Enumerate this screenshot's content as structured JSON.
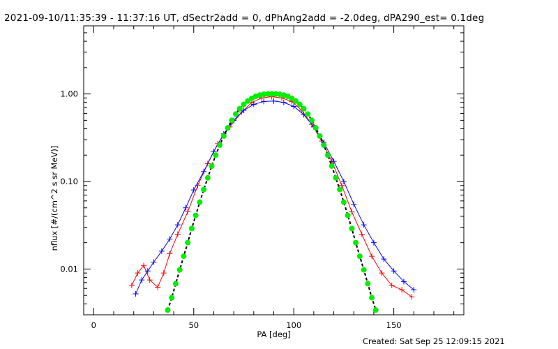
{
  "title": "2021-09-10/11:35:39 - 11:37:16 UT, dSectr2add = 0, dPhAng2add = -2.0deg, dPA290_est=  0.1deg",
  "created": "Created: Sat Sep 25 12:09:15 2021",
  "chart_data": {
    "type": "line",
    "xlabel": "PA [deg]",
    "ylabel": "nflux [#/(cm^2 s sr MeV)]",
    "xlim": [
      -5,
      185
    ],
    "ylim": [
      0.003,
      6.0
    ],
    "yscale": "log",
    "xticks": [
      0,
      50,
      100,
      150
    ],
    "xtick_labels": [
      "0",
      "50",
      "100",
      "150"
    ],
    "yticks": [
      0.01,
      0.1,
      1.0
    ],
    "ytick_labels": [
      "0.01",
      "0.10",
      "1.00"
    ],
    "grid": false,
    "colors": {
      "red": "#ff0000",
      "blue": "#0000ff",
      "green": "#00ee00",
      "black": "#000000"
    },
    "series": [
      {
        "color": "red",
        "marker": "plus",
        "points": [
          [
            19,
            0.0065
          ],
          [
            22,
            0.009
          ],
          [
            25,
            0.011
          ],
          [
            28,
            0.0075
          ],
          [
            32,
            0.0062
          ],
          [
            35,
            0.009
          ],
          [
            38,
            0.015
          ],
          [
            42,
            0.025
          ],
          [
            47,
            0.045
          ],
          [
            52,
            0.09
          ],
          [
            57,
            0.16
          ],
          [
            62,
            0.27
          ],
          [
            68,
            0.42
          ],
          [
            74,
            0.62
          ],
          [
            79,
            0.8
          ],
          [
            84,
            0.9
          ],
          [
            89,
            0.93
          ],
          [
            94,
            0.9
          ],
          [
            99,
            0.82
          ],
          [
            104,
            0.65
          ],
          [
            109,
            0.45
          ],
          [
            114,
            0.29
          ],
          [
            119,
            0.17
          ],
          [
            124,
            0.09
          ],
          [
            129,
            0.045
          ],
          [
            134,
            0.025
          ],
          [
            139,
            0.014
          ],
          [
            144,
            0.009
          ],
          [
            149,
            0.0065
          ],
          [
            154,
            0.0058
          ],
          [
            159,
            0.0048
          ]
        ]
      },
      {
        "color": "blue",
        "marker": "plus",
        "points": [
          [
            21,
            0.0052
          ],
          [
            24,
            0.0075
          ],
          [
            27,
            0.0095
          ],
          [
            30,
            0.012
          ],
          [
            34,
            0.016
          ],
          [
            38,
            0.022
          ],
          [
            42,
            0.032
          ],
          [
            46,
            0.05
          ],
          [
            50,
            0.08
          ],
          [
            55,
            0.13
          ],
          [
            60,
            0.22
          ],
          [
            65,
            0.35
          ],
          [
            70,
            0.5
          ],
          [
            75,
            0.65
          ],
          [
            80,
            0.76
          ],
          [
            85,
            0.82
          ],
          [
            90,
            0.83
          ],
          [
            95,
            0.8
          ],
          [
            100,
            0.72
          ],
          [
            105,
            0.58
          ],
          [
            110,
            0.42
          ],
          [
            115,
            0.28
          ],
          [
            120,
            0.17
          ],
          [
            125,
            0.1
          ],
          [
            130,
            0.055
          ],
          [
            135,
            0.032
          ],
          [
            140,
            0.02
          ],
          [
            145,
            0.013
          ],
          [
            150,
            0.0095
          ],
          [
            155,
            0.0072
          ],
          [
            160,
            0.0058
          ]
        ]
      },
      {
        "color": "green",
        "marker": "circle",
        "points": [
          [
            37,
            0.0034
          ],
          [
            39,
            0.0047
          ],
          [
            41,
            0.0068
          ],
          [
            43,
            0.0098
          ],
          [
            45,
            0.014
          ],
          [
            47,
            0.02
          ],
          [
            49,
            0.029
          ],
          [
            51,
            0.041
          ],
          [
            53,
            0.058
          ],
          [
            55,
            0.081
          ],
          [
            57,
            0.11
          ],
          [
            59,
            0.15
          ],
          [
            61,
            0.2
          ],
          [
            63,
            0.26
          ],
          [
            65,
            0.33
          ],
          [
            67,
            0.41
          ],
          [
            69,
            0.5
          ],
          [
            71,
            0.59
          ],
          [
            73,
            0.68
          ],
          [
            75,
            0.76
          ],
          [
            77,
            0.83
          ],
          [
            79,
            0.89
          ],
          [
            81,
            0.94
          ],
          [
            83,
            0.97
          ],
          [
            85,
            0.99
          ],
          [
            87,
            1.0
          ],
          [
            89,
            1.0
          ],
          [
            91,
            1.0
          ],
          [
            93,
            0.99
          ],
          [
            95,
            0.97
          ],
          [
            97,
            0.94
          ],
          [
            99,
            0.89
          ],
          [
            101,
            0.83
          ],
          [
            103,
            0.76
          ],
          [
            105,
            0.68
          ],
          [
            107,
            0.59
          ],
          [
            109,
            0.5
          ],
          [
            111,
            0.41
          ],
          [
            113,
            0.33
          ],
          [
            115,
            0.26
          ],
          [
            117,
            0.2
          ],
          [
            119,
            0.15
          ],
          [
            121,
            0.11
          ],
          [
            123,
            0.081
          ],
          [
            125,
            0.058
          ],
          [
            127,
            0.041
          ],
          [
            129,
            0.029
          ],
          [
            131,
            0.02
          ],
          [
            133,
            0.014
          ],
          [
            135,
            0.0098
          ],
          [
            137,
            0.0068
          ],
          [
            139,
            0.0047
          ],
          [
            141,
            0.0034
          ]
        ]
      }
    ]
  }
}
